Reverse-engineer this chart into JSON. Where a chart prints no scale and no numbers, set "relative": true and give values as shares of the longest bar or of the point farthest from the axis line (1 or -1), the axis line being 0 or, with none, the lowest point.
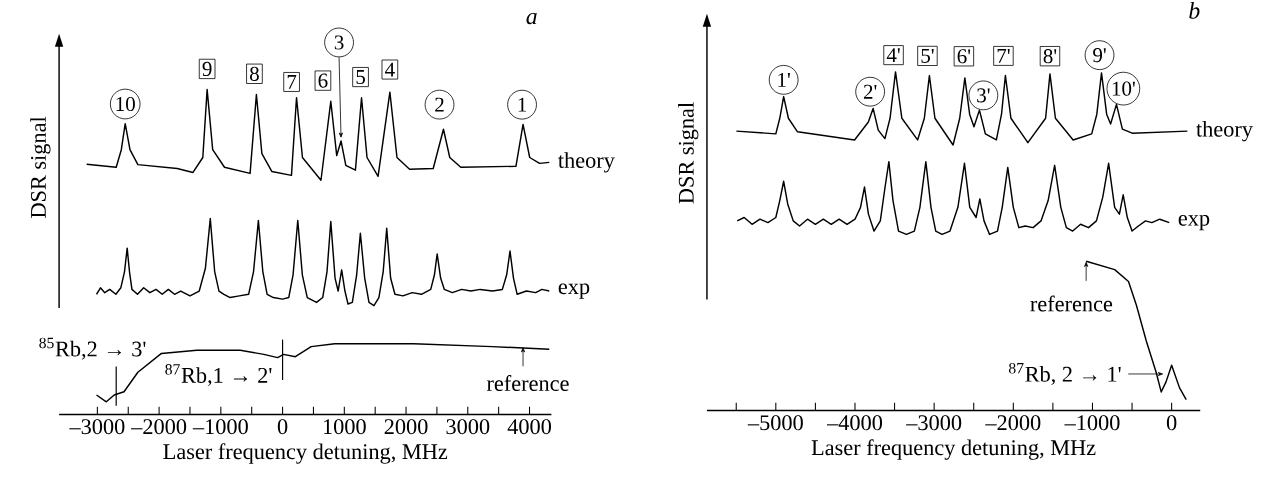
{
  "chart_data": [
    {
      "type": "line",
      "title": "a",
      "xlabel": "Laser frequency detuning, MHz",
      "ylabel": "DSR signal",
      "relative": true,
      "xlim": [
        -3620,
        4354
      ],
      "xticks": [
        {
          "value": -3000,
          "label": "–3000"
        },
        {
          "value": -2500,
          "label": null
        },
        {
          "value": -2000,
          "label": "–2000"
        },
        {
          "value": -1500,
          "label": null
        },
        {
          "value": -1000,
          "label": "–1000"
        },
        {
          "value": -500,
          "label": null
        },
        0,
        {
          "value": 500,
          "label": null
        },
        1000,
        {
          "value": 1500,
          "label": null
        },
        2000,
        {
          "value": 2500,
          "label": null
        },
        3000,
        {
          "value": 3500,
          "label": null
        },
        4000
      ],
      "series": [
        {
          "name": "theory",
          "color": "#000000",
          "x": [
            -3174,
            -2695,
            -2612,
            -2549,
            -2472,
            -2344,
            -1707,
            -1451,
            -1292,
            -1222,
            -1132,
            -941,
            -526,
            -424,
            -335,
            -175,
            144,
            226,
            322,
            622,
            781,
            877,
            947,
            1024,
            1180,
            1279,
            1368,
            1547,
            1738,
            1853,
            2057,
            2440,
            2606,
            2708,
            2887,
            3780,
            3895,
            4003,
            4163,
            4320
          ],
          "values": [
            0.77,
            0.761,
            0.815,
            0.895,
            0.815,
            0.769,
            0.757,
            0.745,
            0.791,
            1,
            0.815,
            0.761,
            0.742,
            0.985,
            0.803,
            0.748,
            0.736,
            0.975,
            0.791,
            0.721,
            0.964,
            0.797,
            0.842,
            0.767,
            0.752,
            0.975,
            0.791,
            0.733,
            0.992,
            0.791,
            0.755,
            0.757,
            0.878,
            0.791,
            0.761,
            0.764,
            0.893,
            0.791,
            0.773,
            0.776
          ]
        },
        {
          "name": "exp",
          "color": "#000000",
          "x": [
            -3014,
            -2950,
            -2880,
            -2800,
            -2700,
            -2620,
            -2560,
            -2517,
            -2480,
            -2440,
            -2350,
            -2250,
            -2150,
            -2050,
            -1950,
            -1850,
            -1750,
            -1650,
            -1500,
            -1350,
            -1250,
            -1171,
            -1100,
            -1030,
            -950,
            -850,
            -700,
            -550,
            -470,
            -392,
            -320,
            -250,
            -150,
            0,
            100,
            170,
            246,
            320,
            400,
            550,
            650,
            720,
            781,
            850,
            900,
            957,
            1010,
            1060,
            1130,
            1200,
            1260,
            1330,
            1400,
            1480,
            1560,
            1630,
            1687,
            1750,
            1820,
            1950,
            2100,
            2250,
            2400,
            2460,
            2504,
            2560,
            2620,
            2750,
            2900,
            3050,
            3200,
            3400,
            3560,
            3630,
            3684,
            3740,
            3800,
            3950,
            4100,
            4200,
            4320
          ],
          "values": [
            0.37,
            0.39,
            0.375,
            0.385,
            0.37,
            0.39,
            0.44,
            0.512,
            0.44,
            0.385,
            0.37,
            0.39,
            0.375,
            0.385,
            0.37,
            0.385,
            0.37,
            0.38,
            0.365,
            0.38,
            0.45,
            0.603,
            0.44,
            0.38,
            0.37,
            0.36,
            0.365,
            0.37,
            0.44,
            0.597,
            0.44,
            0.37,
            0.36,
            0.355,
            0.36,
            0.43,
            0.597,
            0.43,
            0.36,
            0.345,
            0.36,
            0.44,
            0.594,
            0.42,
            0.38,
            0.445,
            0.38,
            0.34,
            0.345,
            0.43,
            0.558,
            0.42,
            0.345,
            0.335,
            0.36,
            0.44,
            0.573,
            0.42,
            0.37,
            0.365,
            0.375,
            0.37,
            0.385,
            0.43,
            0.494,
            0.42,
            0.385,
            0.375,
            0.385,
            0.38,
            0.385,
            0.38,
            0.385,
            0.43,
            0.503,
            0.42,
            0.37,
            0.38,
            0.375,
            0.385,
            0.38
          ]
        },
        {
          "color": "#000000",
          "x": [
            -3014,
            -2855,
            -2727,
            -2568,
            -2344,
            -1962,
            -1388,
            -686,
            -303,
            -80,
            16,
            207,
            463,
            845,
            2121,
            3397,
            4320
          ],
          "values": [
            0.06,
            0.039,
            0.06,
            0.07,
            0.13,
            0.188,
            0.198,
            0.198,
            0.185,
            0.175,
            0.185,
            0.178,
            0.209,
            0.218,
            0.218,
            0.209,
            0.201
          ]
        }
      ],
      "annotations": [
        {
          "text": "10",
          "x": -2549,
          "y": 0.895
        },
        {
          "text": "9",
          "x": -1222,
          "y": 1
        },
        {
          "text": "8",
          "x": -424,
          "y": 0.985
        },
        {
          "text": "7",
          "x": 226,
          "y": 0.975
        },
        {
          "text": "6",
          "x": 781,
          "y": 0.964
        },
        {
          "text": "3",
          "x": 947,
          "y": 0.842
        },
        {
          "text": "5",
          "x": 1279,
          "y": 0.975
        },
        {
          "text": "4",
          "x": 1738,
          "y": 0.992
        },
        {
          "text": "2",
          "x": 2606,
          "y": 0.878
        },
        {
          "text": "1",
          "x": 3895,
          "y": 0.893
        },
        {
          "text": "$^{85}$Rb,2 → 3'",
          "x": -2695,
          "y": 0.06
        },
        {
          "text": "$^{87}$Rb,1 → 2'",
          "x": 0,
          "y": 0.185
        },
        {
          "text": "reference",
          "x": 3895,
          "y": 0.209
        }
      ]
    },
    {
      "type": "line",
      "title": "b",
      "xlabel": "Laser frequency detuning, MHz",
      "ylabel": "DSR signal",
      "relative": true,
      "xlim": [
        -5870,
        361
      ],
      "xticks": [
        {
          "value": -5500,
          "label": null
        },
        {
          "value": -5000,
          "label": "–5000"
        },
        {
          "value": -4500,
          "label": null
        },
        {
          "value": -4000,
          "label": "–4000"
        },
        {
          "value": -3500,
          "label": null
        },
        {
          "value": -3000,
          "label": "–3000"
        },
        {
          "value": -2500,
          "label": null
        },
        {
          "value": -2000,
          "label": "–2000"
        },
        {
          "value": -1500,
          "label": null
        },
        {
          "value": -1000,
          "label": "–1000"
        },
        {
          "value": -500,
          "label": null
        },
        0
      ],
      "series": [
        {
          "name": "theory",
          "color": "#000000",
          "x": [
            -5498,
            -5000,
            -4950,
            -4901,
            -4841,
            -4726,
            -4005,
            -3831,
            -3771,
            -3706,
            -3622,
            -3557,
            -3488,
            -3408,
            -3209,
            -3124,
            -3060,
            -2990,
            -2761,
            -2677,
            -2612,
            -2552,
            -2497,
            -2428,
            -2353,
            -2214,
            -2149,
            -2100,
            -2030,
            -1816,
            -1592,
            -1537,
            -1468,
            -1244,
            -1010,
            -945,
            -886,
            -821,
            -771,
            -697,
            -622,
            -498,
            199
          ],
          "values": [
            0.825,
            0.817,
            0.863,
            0.927,
            0.863,
            0.823,
            0.799,
            0.852,
            0.892,
            0.828,
            0.803,
            0.863,
            1,
            0.863,
            0.799,
            0.863,
            0.989,
            0.863,
            0.784,
            0.863,
            0.982,
            0.875,
            0.838,
            0.887,
            0.817,
            0.799,
            0.875,
            0.989,
            0.863,
            0.791,
            0.863,
            0.994,
            0.863,
            0.799,
            0.817,
            0.875,
            0.997,
            0.875,
            0.846,
            0.904,
            0.831,
            0.819,
            0.825
          ]
        },
        {
          "name": "exp",
          "color": "#000000",
          "x": [
            -5488,
            -5400,
            -5300,
            -5200,
            -5100,
            -5000,
            -4950,
            -4901,
            -4850,
            -4780,
            -4700,
            -4600,
            -4500,
            -4400,
            -4300,
            -4200,
            -4100,
            -4000,
            -3930,
            -3880,
            -3830,
            -3760,
            -3680,
            -3620,
            -3572,
            -3520,
            -3450,
            -3350,
            -3250,
            -3180,
            -3105,
            -3040,
            -2980,
            -2900,
            -2800,
            -2700,
            -2617,
            -2550,
            -2470,
            -2423,
            -2370,
            -2300,
            -2200,
            -2140,
            -2070,
            -2000,
            -1930,
            -1850,
            -1750,
            -1650,
            -1560,
            -1478,
            -1400,
            -1330,
            -1250,
            -1150,
            -1050,
            -950,
            -870,
            -796,
            -720,
            -660,
            -612,
            -560,
            -500,
            -420,
            -330,
            -250,
            -150,
            -30
          ],
          "values": [
            0.56,
            0.57,
            0.55,
            0.565,
            0.555,
            0.57,
            0.62,
            0.677,
            0.61,
            0.56,
            0.545,
            0.565,
            0.55,
            0.565,
            0.55,
            0.565,
            0.55,
            0.565,
            0.6,
            0.66,
            0.58,
            0.53,
            0.56,
            0.66,
            0.735,
            0.62,
            0.53,
            0.52,
            0.53,
            0.6,
            0.735,
            0.6,
            0.53,
            0.52,
            0.53,
            0.6,
            0.73,
            0.6,
            0.57,
            0.625,
            0.56,
            0.52,
            0.53,
            0.6,
            0.718,
            0.6,
            0.54,
            0.545,
            0.54,
            0.56,
            0.62,
            0.724,
            0.6,
            0.54,
            0.53,
            0.55,
            0.54,
            0.56,
            0.63,
            0.73,
            0.6,
            0.58,
            0.637,
            0.57,
            0.53,
            0.545,
            0.56,
            0.555,
            0.565,
            0.555
          ]
        },
        {
          "color": "#000000",
          "x": [
            -1080,
            -719,
            -545,
            -445,
            -321,
            -196,
            -132,
            -72,
            0,
            100,
            184
          ],
          "values": [
            0.441,
            0.416,
            0.381,
            0.311,
            0.206,
            0.113,
            0.055,
            0.084,
            0.134,
            0.067,
            0.032
          ]
        }
      ],
      "annotations": [
        {
          "text": "1'",
          "x": -4901,
          "y": 0.927
        },
        {
          "text": "2'",
          "x": -3771,
          "y": 0.892
        },
        {
          "text": "4'",
          "x": -3488,
          "y": 1
        },
        {
          "text": "5'",
          "x": -3060,
          "y": 0.989
        },
        {
          "text": "6'",
          "x": -2612,
          "y": 0.982
        },
        {
          "text": "3'",
          "x": -2428,
          "y": 0.887
        },
        {
          "text": "7'",
          "x": -2100,
          "y": 0.989
        },
        {
          "text": "8'",
          "x": -1537,
          "y": 0.994
        },
        {
          "text": "9'",
          "x": -886,
          "y": 0.997
        },
        {
          "text": "10'",
          "x": -697,
          "y": 0.904
        },
        {
          "text": "reference",
          "x": -1080,
          "y": 0.441
        },
        {
          "text": "$^{87}$Rb, 2 → 1'",
          "x": -100,
          "y": 0.108
        }
      ]
    }
  ]
}
